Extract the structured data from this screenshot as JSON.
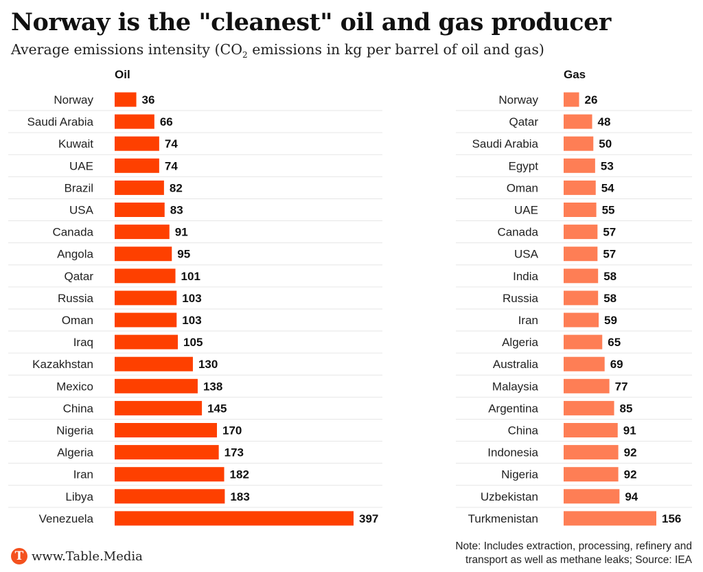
{
  "header": {
    "title": "Norway is the \"cleanest\" oil and gas producer",
    "subtitle_before": "Average emissions intensity (CO",
    "subtitle_sub": "2",
    "subtitle_after": " emissions in kg per barrel of oil and gas)"
  },
  "colors": {
    "oil": "#fe4000",
    "gas": "#fe7e55",
    "rule": "#e6e6e6",
    "text": "#222222"
  },
  "chart_data": [
    {
      "type": "bar",
      "orientation": "horizontal",
      "title": "Oil",
      "categories": [
        "Norway",
        "Saudi Arabia",
        "Kuwait",
        "UAE",
        "Brazil",
        "USA",
        "Canada",
        "Angola",
        "Qatar",
        "Russia",
        "Oman",
        "Iraq",
        "Kazakhstan",
        "Mexico",
        "China",
        "Nigeria",
        "Algeria",
        "Iran",
        "Libya",
        "Venezuela"
      ],
      "values": [
        36,
        66,
        74,
        74,
        82,
        83,
        91,
        95,
        101,
        103,
        103,
        105,
        130,
        138,
        145,
        170,
        173,
        182,
        183,
        397
      ],
      "xlim": [
        0,
        397
      ]
    },
    {
      "type": "bar",
      "orientation": "horizontal",
      "title": "Gas",
      "categories": [
        "Norway",
        "Qatar",
        "Saudi Arabia",
        "Egypt",
        "Oman",
        "UAE",
        "Canada",
        "USA",
        "India",
        "Russia",
        "Iran",
        "Algeria",
        "Australia",
        "Malaysia",
        "Argentina",
        "China",
        "Indonesia",
        "Nigeria",
        "Uzbekistan",
        "Turkmenistan"
      ],
      "values": [
        26,
        48,
        50,
        53,
        54,
        55,
        57,
        57,
        58,
        58,
        59,
        65,
        69,
        77,
        85,
        91,
        92,
        92,
        94,
        156
      ],
      "xlim": [
        0,
        156
      ]
    }
  ],
  "footer": {
    "logo_letter": "T",
    "site": "www.Table.Media",
    "note_line1": "Note: Includes extraction, processing, refinery and",
    "note_line2": "transport as well as methane leaks; Source: IEA"
  }
}
